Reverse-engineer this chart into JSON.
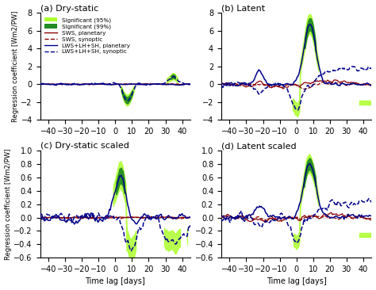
{
  "title_a": "(a) Dry-static",
  "title_b": "(b) Latent",
  "title_c": "(c) Dry-static scaled",
  "title_d": "(d) Latent scaled",
  "ylabel_ab": "Regression coefficient [Wm2/PW]",
  "ylabel_cd": "Regression coefficient [Wm2/]",
  "xlabel": "Time lag [days]",
  "xlim": [
    -45,
    45
  ],
  "xticks": [
    -40,
    -30,
    -20,
    -10,
    0,
    10,
    20,
    30,
    40
  ],
  "ylim_ab": [
    -4,
    8
  ],
  "yticks_ab": [
    -4,
    -2,
    0,
    2,
    4,
    6,
    8
  ],
  "ylim_cd": [
    -0.6,
    1.0
  ],
  "yticks_cd": [
    -0.6,
    -0.4,
    -0.2,
    0.0,
    0.2,
    0.4,
    0.6,
    0.8,
    1.0
  ],
  "color_red": "#8B0000",
  "color_blue": "#00008B",
  "color_sig95": "#ADFF2F",
  "color_sig99": "#228B22",
  "background": "#ffffff",
  "legend_labels": [
    "Significant (95%)",
    "Significant (99%)",
    "SWS, planetary",
    "SWS, synoptic",
    "LWS+LH+SH, planetary",
    "LWS+LH+SH, synoptic"
  ]
}
